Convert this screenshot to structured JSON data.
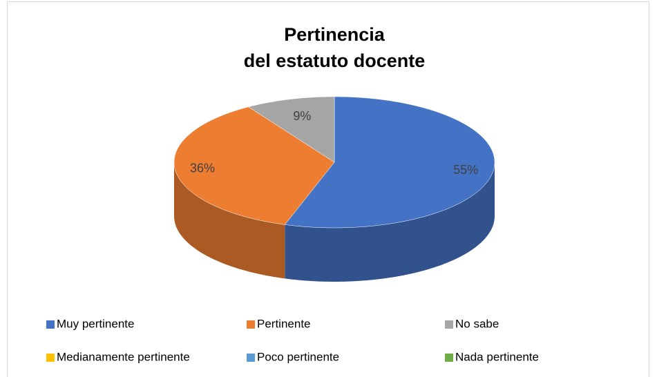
{
  "chart_data": {
    "type": "pie",
    "title": [
      "Pertinencia",
      "del estatuto docente"
    ],
    "categories": [
      "Muy pertinente",
      "Pertinente",
      "No sabe",
      "Medianamente pertinente",
      "Poco pertinente",
      "Nada pertinente"
    ],
    "values": [
      55,
      36,
      9,
      0,
      0,
      0
    ],
    "value_labels": [
      "55%",
      "36%",
      "9%",
      null,
      null,
      null
    ],
    "colors": [
      "#4472c4",
      "#ed7d31",
      "#a5a5a5",
      "#ffc000",
      "#5b9bd5",
      "#70ad47"
    ],
    "legend": "bottom"
  }
}
